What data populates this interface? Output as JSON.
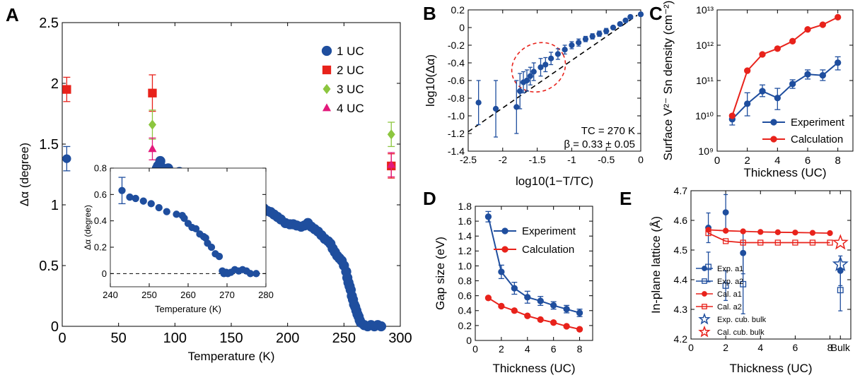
{
  "panels": {
    "A": {
      "letter": "A",
      "xlabel": "Temperature (K)",
      "ylabel": "Δα (degree)",
      "inset": {
        "xlabel": "Temperature (K)",
        "ylabel": "Δα (degree)"
      }
    },
    "B": {
      "letter": "B",
      "xlabel": "log10(1−T/TC)",
      "ylabel": "log10(Δα)",
      "annotation_tc": "TC = 270 K",
      "annotation_beta": "β = 0.33 ± 0.05"
    },
    "C": {
      "letter": "C",
      "xlabel": "Thickness (UC)",
      "ylabel": "Surface V²⁻ Sn density (cm⁻²)"
    },
    "D": {
      "letter": "D",
      "xlabel": "Thickness (UC)",
      "ylabel": "Gap size (eV)"
    },
    "E": {
      "letter": "E",
      "xlabel": "Thickness (UC)",
      "ylabel": "In-plane lattice (Å)"
    }
  },
  "chart_data": [
    {
      "panel": "A",
      "type": "scatter",
      "xlabel": "Temperature (K)",
      "ylabel": "Δα (degree)",
      "xlim": [
        0,
        300
      ],
      "ylim": [
        0,
        2.5
      ],
      "xticks": [
        0,
        50,
        100,
        150,
        200,
        250,
        300
      ],
      "yticks": [
        0,
        0.5,
        1,
        1.5,
        2,
        2.5
      ],
      "legend_position": "top-right",
      "series": [
        {
          "name": "1 UC",
          "color": "#1f4e9e",
          "marker": "circle",
          "errorbar_points": [
            {
              "x": 4,
              "y": 1.38,
              "err": 0.1
            }
          ],
          "points": [
            [
              84,
              1.3
            ],
            [
              85,
              1.32
            ],
            [
              87,
              1.36
            ],
            [
              88,
              1.31
            ],
            [
              89,
              1.28
            ],
            [
              90,
              1.29
            ],
            [
              92,
              1.29
            ],
            [
              94,
              1.3
            ],
            [
              95,
              1.25
            ],
            [
              97,
              1.23
            ],
            [
              99,
              1.2
            ],
            [
              100,
              1.22
            ],
            [
              102,
              1.25
            ],
            [
              104,
              1.27
            ],
            [
              106,
              1.24
            ],
            [
              108,
              1.21
            ],
            [
              111,
              1.19
            ],
            [
              114,
              1.22
            ],
            [
              118,
              1.22
            ],
            [
              121,
              1.2
            ],
            [
              124,
              1.2
            ],
            [
              127,
              1.18
            ],
            [
              130,
              1.17
            ],
            [
              133,
              1.14
            ],
            [
              136,
              1.15
            ],
            [
              139,
              1.12
            ],
            [
              142,
              1.11
            ],
            [
              145,
              1.1
            ],
            [
              148,
              1.09
            ],
            [
              152,
              1.09
            ],
            [
              155,
              1.07
            ],
            [
              158,
              1.06
            ],
            [
              161,
              1.05
            ],
            [
              164,
              1.04
            ],
            [
              167,
              1.04
            ],
            [
              170,
              1.03
            ],
            [
              173,
              1.0
            ],
            [
              176,
              0.99
            ],
            [
              179,
              0.97
            ],
            [
              182,
              0.95
            ],
            [
              185,
              0.94
            ],
            [
              188,
              0.92
            ],
            [
              191,
              0.9
            ],
            [
              194,
              0.88
            ],
            [
              198,
              0.85
            ],
            [
              202,
              0.84
            ],
            [
              205,
              0.84
            ],
            [
              208,
              0.83
            ],
            [
              212,
              0.82
            ],
            [
              215,
              0.83
            ],
            [
              218,
              0.85
            ],
            [
              221,
              0.82
            ],
            [
              224,
              0.8
            ],
            [
              227,
              0.78
            ],
            [
              230,
              0.75
            ],
            [
              233,
              0.72
            ],
            [
              236,
              0.7
            ],
            [
              238,
              0.68
            ],
            [
              240,
              0.64
            ],
            [
              242,
              0.61
            ],
            [
              244,
              0.58
            ],
            [
              246,
              0.56
            ],
            [
              248,
              0.54
            ],
            [
              250,
              0.5
            ],
            [
              252,
              0.45
            ],
            [
              253,
              0.4
            ],
            [
              254,
              0.36
            ],
            [
              255,
              0.33
            ],
            [
              256,
              0.3
            ],
            [
              257,
              0.25
            ],
            [
              258,
              0.22
            ],
            [
              259,
              0.18
            ],
            [
              260,
              0.16
            ],
            [
              261,
              0.13
            ],
            [
              262,
              0.1
            ],
            [
              263,
              0.08
            ],
            [
              264,
              0.05
            ],
            [
              265,
              0.03
            ],
            [
              268,
              0.01
            ],
            [
              271,
              0.0
            ],
            [
              274,
              0.01
            ],
            [
              277,
              0.0
            ],
            [
              280,
              0.01
            ],
            [
              283,
              0.0
            ]
          ]
        },
        {
          "name": "2 UC",
          "color": "#e8221b",
          "marker": "square",
          "errorbar_points": [
            {
              "x": 4,
              "y": 1.95,
              "err": 0.1
            },
            {
              "x": 80,
              "y": 1.92,
              "err": 0.15
            },
            {
              "x": 292,
              "y": 1.32,
              "err": 0.1
            }
          ]
        },
        {
          "name": "3 UC",
          "color": "#8cc63f",
          "marker": "diamond",
          "errorbar_points": [
            {
              "x": 80,
              "y": 1.66,
              "err": 0.12
            },
            {
              "x": 292,
              "y": 1.58,
              "err": 0.1
            }
          ]
        },
        {
          "name": "4 UC",
          "color": "#e3197b",
          "marker": "triangle",
          "errorbar_points": [
            {
              "x": 80,
              "y": 1.46,
              "err": 0.09
            },
            {
              "x": 292,
              "y": 1.33,
              "err": 0.1
            }
          ]
        }
      ],
      "inset": {
        "type": "scatter",
        "xlim": [
          240,
          280
        ],
        "ylim": [
          -0.1,
          0.8
        ],
        "xticks": [
          240,
          250,
          260,
          270,
          280
        ],
        "yticks": [
          0,
          0.2,
          0.4,
          0.6,
          0.8
        ],
        "xlabel": "Temperature (K)",
        "ylabel": "Δα (degree)",
        "zero_line": true,
        "errorbar_points": [
          {
            "x": 243,
            "y": 0.63,
            "err": 0.1
          }
        ],
        "points": [
          [
            245,
            0.58
          ],
          [
            246.5,
            0.57
          ],
          [
            248.5,
            0.55
          ],
          [
            250.5,
            0.53
          ],
          [
            252.5,
            0.5
          ],
          [
            254.5,
            0.47
          ],
          [
            257,
            0.45
          ],
          [
            258.5,
            0.44
          ],
          [
            259,
            0.42
          ],
          [
            260,
            0.38
          ],
          [
            261,
            0.35
          ],
          [
            262,
            0.34
          ],
          [
            263,
            0.3
          ],
          [
            264,
            0.28
          ],
          [
            264.5,
            0.27
          ],
          [
            265,
            0.23
          ],
          [
            266,
            0.2
          ],
          [
            267,
            0.15
          ],
          [
            268,
            0.13
          ],
          [
            268.8,
            0.02
          ],
          [
            269.2,
            0.0
          ],
          [
            269.8,
            0.01
          ],
          [
            270.2,
            0.0
          ],
          [
            271,
            0.01
          ],
          [
            272,
            0.03
          ],
          [
            273,
            0.02
          ],
          [
            274,
            0.03
          ],
          [
            275,
            0.02
          ],
          [
            276,
            0.0
          ],
          [
            277.5,
            0.0
          ]
        ]
      }
    },
    {
      "panel": "B",
      "type": "scatter",
      "xlabel": "log10(1−T/TC)",
      "ylabel": "log10(Δα)",
      "xlim": [
        -2.5,
        0
      ],
      "ylim": [
        -1.4,
        0.2
      ],
      "xticks": [
        -2.5,
        -2,
        -1.5,
        -1,
        -0.5,
        0
      ],
      "yticks": [
        -1.4,
        -1.2,
        -1.0,
        -0.8,
        -0.6,
        -0.4,
        -0.2,
        0,
        0.2
      ],
      "annotations": [
        "TC = 270 K",
        "β = 0.33 ± 0.05"
      ],
      "fit_line": {
        "x": [
          -2.5,
          -0.05
        ],
        "y": [
          -1.18,
          0.14
        ]
      },
      "highlight_ellipse": {
        "center": [
          -1.48,
          -0.45
        ],
        "rx": 0.4,
        "ry": 0.27
      },
      "series": [
        {
          "color": "#1f4e9e",
          "points": [
            [
              -2.35,
              -0.85,
              0.25
            ],
            [
              -2.1,
              -0.92,
              0.32
            ],
            [
              -1.8,
              -0.9,
              0.3
            ],
            [
              -1.75,
              -0.72,
              0.2
            ],
            [
              -1.7,
              -0.62,
              0.12
            ],
            [
              -1.65,
              -0.6,
              0.12
            ],
            [
              -1.6,
              -0.55,
              0.1
            ],
            [
              -1.55,
              -0.5,
              0.1
            ],
            [
              -1.45,
              -0.45,
              0.1
            ],
            [
              -1.38,
              -0.42,
              0.08
            ],
            [
              -1.3,
              -0.35,
              0.07
            ],
            [
              -1.2,
              -0.3,
              0.06
            ],
            [
              -1.1,
              -0.25,
              0.05
            ],
            [
              -1.0,
              -0.2,
              0.04
            ],
            [
              -0.9,
              -0.17,
              0.04
            ],
            [
              -0.8,
              -0.13,
              0.03
            ],
            [
              -0.7,
              -0.1,
              0.03
            ],
            [
              -0.6,
              -0.07,
              0.03
            ],
            [
              -0.5,
              -0.04,
              0.03
            ],
            [
              -0.4,
              0.0,
              0.02
            ],
            [
              -0.3,
              0.04,
              0.02
            ],
            [
              -0.22,
              0.08,
              0.02
            ],
            [
              -0.15,
              0.12,
              0.02
            ],
            [
              0.0,
              0.15,
              0.02
            ]
          ]
        }
      ]
    },
    {
      "panel": "C",
      "type": "line",
      "yscale": "log",
      "xlabel": "Thickness (UC)",
      "ylabel": "Surface V²⁻ Sn density (cm⁻²)",
      "xlim": [
        0,
        9
      ],
      "ylim": [
        1000000000.0,
        10000000000000.0
      ],
      "xticks": [
        0,
        2,
        4,
        6,
        8
      ],
      "ytick_labels": [
        "10⁹",
        "10¹⁰",
        "10¹¹",
        "10¹²",
        "10¹³"
      ],
      "legend_position": "bottom-right",
      "x": [
        1,
        2,
        3,
        4,
        5,
        6,
        7,
        8
      ],
      "series": [
        {
          "name": "Experiment",
          "color": "#1f4e9e",
          "values": [
            8000000000.0,
            22000000000.0,
            50000000000.0,
            32000000000.0,
            80000000000.0,
            150000000000.0,
            140000000000.0,
            320000000000.0
          ],
          "err_lo": [
            5500000000.0,
            10000000000.0,
            35000000000.0,
            15000000000.0,
            60000000000.0,
            110000000000.0,
            100000000000.0,
            200000000000.0
          ],
          "err_hi": [
            11000000000.0,
            45000000000.0,
            75000000000.0,
            60000000000.0,
            105000000000.0,
            200000000000.0,
            200000000000.0,
            470000000000.0
          ]
        },
        {
          "name": "Calculation",
          "color": "#e8221b",
          "values": [
            10000000000.0,
            190000000000.0,
            550000000000.0,
            800000000000.0,
            1300000000000.0,
            2800000000000.0,
            3800000000000.0,
            6200000000000.0
          ]
        }
      ]
    },
    {
      "panel": "D",
      "type": "line",
      "xlabel": "Thickness (UC)",
      "ylabel": "Gap size (eV)",
      "xlim": [
        0,
        9
      ],
      "ylim": [
        0,
        1.8
      ],
      "xticks": [
        0,
        2,
        4,
        6,
        8
      ],
      "yticks": [
        0,
        0.2,
        0.4,
        0.6,
        0.8,
        1.0,
        1.2,
        1.4,
        1.6,
        1.8
      ],
      "legend_position": "top-right",
      "x": [
        1,
        2,
        3,
        4,
        5,
        6,
        7,
        8
      ],
      "series": [
        {
          "name": "Experiment",
          "color": "#1f4e9e",
          "values": [
            1.66,
            0.92,
            0.7,
            0.58,
            0.53,
            0.47,
            0.42,
            0.37
          ],
          "errors": [
            0.07,
            0.09,
            0.08,
            0.08,
            0.06,
            0.05,
            0.05,
            0.05
          ]
        },
        {
          "name": "Calculation",
          "color": "#e8221b",
          "values": [
            0.57,
            0.46,
            0.4,
            0.33,
            0.28,
            0.24,
            0.19,
            0.15
          ]
        }
      ]
    },
    {
      "panel": "E",
      "type": "line",
      "xlabel": "Thickness (UC)",
      "ylabel": "In-plane lattice (Å)",
      "xlim": [
        0,
        9.2
      ],
      "ylim": [
        4.2,
        4.7
      ],
      "xticks": [
        0,
        2,
        4,
        6,
        8
      ],
      "xtick_extra_label": "Bulk",
      "bulk_x": 8.6,
      "yticks": [
        4.2,
        4.3,
        4.4,
        4.5,
        4.6,
        4.7
      ],
      "legend_position": "bottom-left",
      "series": [
        {
          "name": "Exp. a1",
          "color": "#1f4e9e",
          "marker": "filled-circle",
          "points": [
            [
              1,
              4.575,
              0.05
            ],
            [
              2,
              4.627,
              0.06
            ],
            [
              3,
              4.49,
              0.07
            ],
            [
              8.6,
              4.43,
              0.05
            ]
          ]
        },
        {
          "name": "Exp. a2",
          "color": "#1f4e9e",
          "marker": "open-square",
          "points": [
            [
              1,
              4.443,
              0.05
            ],
            [
              2,
              4.38,
              0.05
            ],
            [
              3,
              4.385,
              0.1
            ],
            [
              8.6,
              4.365,
              0.07
            ]
          ]
        },
        {
          "name": "Cal. a1",
          "color": "#e8221b",
          "marker": "filled-circle",
          "x": [
            1,
            2,
            3,
            4,
            5,
            6,
            7,
            8
          ],
          "values": [
            4.568,
            4.565,
            4.563,
            4.561,
            4.56,
            4.559,
            4.558,
            4.557
          ]
        },
        {
          "name": "Cal. a2",
          "color": "#e8221b",
          "marker": "open-square",
          "x": [
            1,
            2,
            3,
            4,
            5,
            6,
            7,
            8
          ],
          "values": [
            4.557,
            4.53,
            4.525,
            4.525,
            4.525,
            4.525,
            4.525,
            4.525
          ]
        },
        {
          "name": "Exp. cub. bulk",
          "color": "#1f4e9e",
          "marker": "open-star",
          "points": [
            [
              8.6,
              4.452
            ]
          ]
        },
        {
          "name": "Cal. cub. bulk",
          "color": "#e8221b",
          "marker": "open-star",
          "points": [
            [
              8.6,
              4.525
            ]
          ]
        }
      ]
    }
  ]
}
